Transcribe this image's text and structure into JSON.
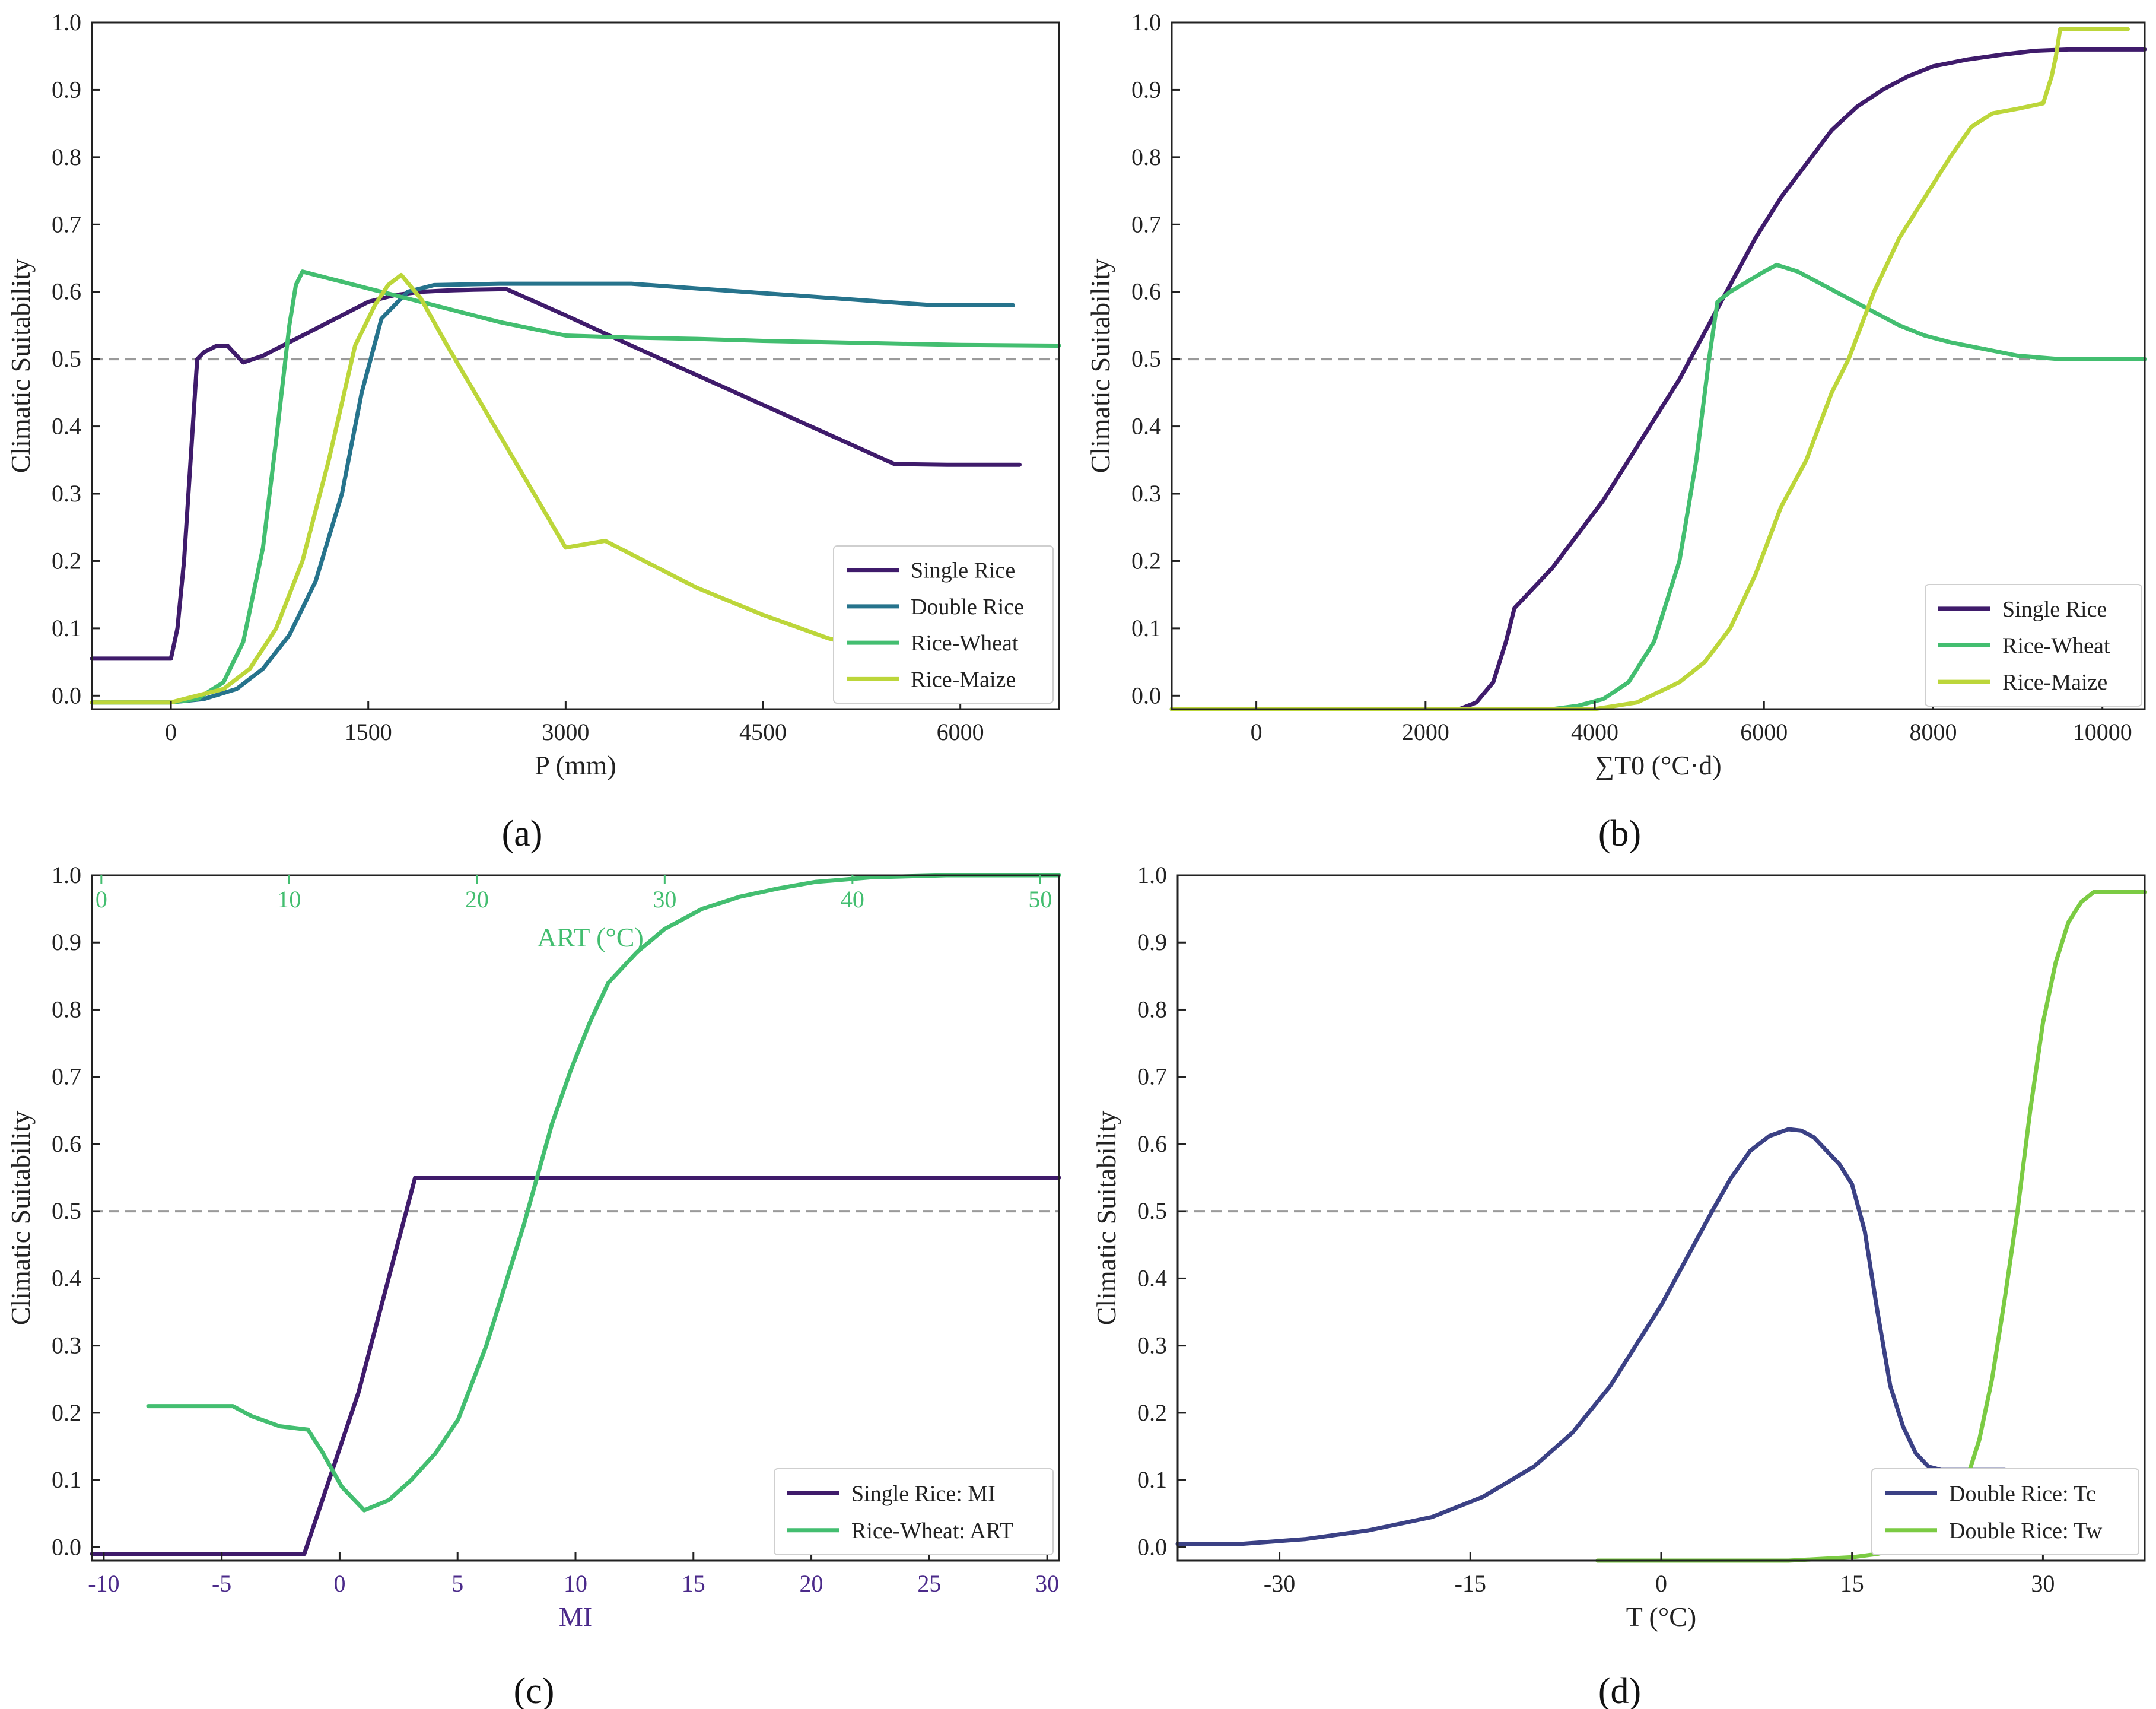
{
  "colors": {
    "single_rice": "#3F1B6B",
    "double_rice": "#26738C",
    "rice_wheat": "#43BE70",
    "rice_maize": "#BCD63A",
    "double_rice_tc": "#3B4185",
    "double_rice_tw": "#7BCB43",
    "reference_line": "#9A9A9A",
    "mi_axis": "#4B2A8A",
    "art_axis": "#43BE70"
  },
  "chart_data": [
    {
      "id": "a",
      "type": "line",
      "panel_label": "(a)",
      "xlabel": "P (mm)",
      "ylabel": "Climatic Suitability",
      "xlim": [
        -600,
        6750
      ],
      "ylim": [
        -0.02,
        1.0
      ],
      "xticks": [
        0,
        1500,
        3000,
        4500,
        6000
      ],
      "xtick_labels": [
        "0",
        "1500",
        "3000",
        "4500",
        "6000"
      ],
      "yticks": [
        0.0,
        0.1,
        0.2,
        0.3,
        0.4,
        0.5,
        0.6,
        0.7,
        0.8,
        0.9,
        1.0
      ],
      "ytick_labels": [
        "0.0",
        "0.1",
        "0.2",
        "0.3",
        "0.4",
        "0.5",
        "0.6",
        "0.7",
        "0.8",
        "0.9",
        "1.0"
      ],
      "reference_line": 0.5,
      "legend_position": "lower-right",
      "series": [
        {
          "name": "Single Rice",
          "color_key": "single_rice",
          "x": [
            -600,
            0,
            50,
            100,
            150,
            200,
            250,
            350,
            430,
            500,
            550,
            700,
            900,
            1100,
            1300,
            1500,
            1700,
            1900,
            2100,
            2300,
            2550,
            3000,
            3500,
            4000,
            4500,
            5000,
            5500,
            5900,
            6450
          ],
          "y": [
            0.055,
            0.055,
            0.1,
            0.2,
            0.35,
            0.5,
            0.51,
            0.52,
            0.52,
            0.505,
            0.495,
            0.505,
            0.525,
            0.545,
            0.565,
            0.585,
            0.595,
            0.6,
            0.602,
            0.603,
            0.604,
            0.565,
            0.52,
            0.476,
            0.432,
            0.388,
            0.344,
            0.343,
            0.343
          ]
        },
        {
          "name": "Double Rice",
          "color_key": "double_rice",
          "x": [
            -600,
            0,
            250,
            500,
            700,
            900,
            1100,
            1300,
            1450,
            1600,
            1800,
            2000,
            2500,
            3000,
            3500,
            4000,
            4500,
            5000,
            5500,
            5800,
            6400
          ],
          "y": [
            -0.01,
            -0.01,
            -0.005,
            0.01,
            0.04,
            0.09,
            0.17,
            0.3,
            0.45,
            0.56,
            0.6,
            0.61,
            0.612,
            0.612,
            0.612,
            0.605,
            0.598,
            0.591,
            0.584,
            0.58,
            0.58
          ]
        },
        {
          "name": "Rice-Wheat",
          "color_key": "rice_wheat",
          "x": [
            -600,
            0,
            200,
            400,
            550,
            700,
            800,
            900,
            950,
            1000,
            1500,
            2000,
            2500,
            3000,
            3500,
            4000,
            4500,
            5000,
            5500,
            6000,
            6750
          ],
          "y": [
            -0.01,
            -0.01,
            -0.005,
            0.02,
            0.08,
            0.22,
            0.38,
            0.55,
            0.61,
            0.63,
            0.605,
            0.58,
            0.555,
            0.535,
            0.532,
            0.53,
            0.527,
            0.525,
            0.523,
            0.521,
            0.52
          ]
        },
        {
          "name": "Rice-Maize",
          "color_key": "rice_maize",
          "x": [
            -600,
            0,
            200,
            400,
            600,
            800,
            1000,
            1200,
            1400,
            1550,
            1650,
            1750,
            1900,
            2100,
            2400,
            2700,
            3000,
            3300,
            3600,
            4000,
            4500,
            5000,
            5500,
            6000
          ],
          "y": [
            -0.01,
            -0.01,
            0.0,
            0.01,
            0.04,
            0.1,
            0.2,
            0.35,
            0.52,
            0.58,
            0.61,
            0.625,
            0.59,
            0.52,
            0.42,
            0.32,
            0.22,
            0.23,
            0.2,
            0.16,
            0.12,
            0.085,
            0.06,
            0.05
          ]
        }
      ]
    },
    {
      "id": "b",
      "type": "line",
      "panel_label": "(b)",
      "xlabel": "∑T0 (°C·d)",
      "ylabel": "Climatic Suitability",
      "xlim": [
        -1000,
        10500
      ],
      "ylim": [
        -0.02,
        1.0
      ],
      "xticks": [
        0,
        2000,
        4000,
        6000,
        8000,
        10000
      ],
      "xtick_labels": [
        "0",
        "2000",
        "4000",
        "6000",
        "8000",
        "10000"
      ],
      "yticks": [
        0.0,
        0.1,
        0.2,
        0.3,
        0.4,
        0.5,
        0.6,
        0.7,
        0.8,
        0.9,
        1.0
      ],
      "ytick_labels": [
        "0.0",
        "0.1",
        "0.2",
        "0.3",
        "0.4",
        "0.5",
        "0.6",
        "0.7",
        "0.8",
        "0.9",
        "1.0"
      ],
      "reference_line": 0.5,
      "legend_position": "lower-right",
      "series": [
        {
          "name": "Single Rice",
          "color_key": "single_rice",
          "x": [
            -1000,
            2400,
            2600,
            2800,
            2950,
            3050,
            3200,
            3500,
            3800,
            4100,
            4400,
            4700,
            5000,
            5300,
            5600,
            5900,
            6200,
            6500,
            6800,
            7100,
            7400,
            7700,
            8000,
            8400,
            8800,
            9200,
            9600,
            10500
          ],
          "y": [
            -0.02,
            -0.02,
            -0.01,
            0.02,
            0.08,
            0.13,
            0.15,
            0.19,
            0.24,
            0.29,
            0.35,
            0.41,
            0.47,
            0.54,
            0.61,
            0.68,
            0.74,
            0.79,
            0.84,
            0.875,
            0.9,
            0.92,
            0.935,
            0.945,
            0.952,
            0.958,
            0.96,
            0.96
          ]
        },
        {
          "name": "Rice-Wheat",
          "color_key": "rice_wheat",
          "x": [
            -1000,
            3500,
            3800,
            4100,
            4400,
            4700,
            5000,
            5200,
            5350,
            5450,
            5600,
            5800,
            6000,
            6150,
            6400,
            6700,
            7000,
            7300,
            7600,
            7900,
            8200,
            8600,
            9000,
            9500,
            10500
          ],
          "y": [
            -0.02,
            -0.02,
            -0.015,
            -0.005,
            0.02,
            0.08,
            0.2,
            0.35,
            0.5,
            0.585,
            0.6,
            0.615,
            0.63,
            0.64,
            0.63,
            0.61,
            0.59,
            0.57,
            0.55,
            0.535,
            0.525,
            0.515,
            0.505,
            0.5,
            0.5
          ]
        },
        {
          "name": "Rice-Maize",
          "color_key": "rice_maize",
          "x": [
            -1000,
            4000,
            4500,
            5000,
            5300,
            5600,
            5900,
            6200,
            6500,
            6800,
            7000,
            7300,
            7600,
            7900,
            8200,
            8450,
            8700,
            9000,
            9300,
            9400,
            9450,
            9500,
            10000,
            10300
          ],
          "y": [
            -0.02,
            -0.02,
            -0.01,
            0.02,
            0.05,
            0.1,
            0.18,
            0.28,
            0.35,
            0.45,
            0.5,
            0.6,
            0.68,
            0.74,
            0.8,
            0.845,
            0.865,
            0.872,
            0.88,
            0.92,
            0.95,
            0.99,
            0.99,
            0.99
          ]
        }
      ]
    },
    {
      "id": "c",
      "type": "line",
      "panel_label": "(c)",
      "xlabel": "MI",
      "x2label": "ART (°C)",
      "ylabel": "Climatic Suitability",
      "xlim": [
        -10.5,
        30.5
      ],
      "x2lim": [
        -0.5,
        51
      ],
      "ylim": [
        -0.02,
        1.0
      ],
      "xticks": [
        -10,
        -5,
        0,
        5,
        10,
        15,
        20,
        25,
        30
      ],
      "xtick_labels": [
        "-10",
        "-5",
        "0",
        "5",
        "10",
        "15",
        "20",
        "25",
        "30"
      ],
      "x2ticks": [
        0,
        10,
        20,
        30,
        40,
        50
      ],
      "x2tick_labels": [
        "0",
        "10",
        "20",
        "30",
        "40",
        "50"
      ],
      "yticks": [
        0.0,
        0.1,
        0.2,
        0.3,
        0.4,
        0.5,
        0.6,
        0.7,
        0.8,
        0.9,
        1.0
      ],
      "ytick_labels": [
        "0.0",
        "0.1",
        "0.2",
        "0.3",
        "0.4",
        "0.5",
        "0.6",
        "0.7",
        "0.8",
        "0.9",
        "1.0"
      ],
      "reference_line": 0.5,
      "legend_position": "lower-right",
      "series": [
        {
          "name": "Single Rice: MI",
          "color_key": "single_rice",
          "axis": "MI",
          "x": [
            -10.5,
            -1.5,
            0.8,
            3.2,
            30.5
          ],
          "y": [
            -0.01,
            -0.01,
            0.23,
            0.55,
            0.55
          ]
        },
        {
          "name": "Rice-Wheat: ART",
          "color_key": "rice_wheat",
          "axis": "ART",
          "x": [
            2.5,
            4.5,
            7,
            8,
            9.5,
            11,
            11.8,
            12.8,
            14,
            15.3,
            16.5,
            17.8,
            19,
            20.5,
            22.5,
            24,
            25,
            26,
            27,
            28.5,
            30,
            32,
            34,
            36,
            38,
            41,
            45,
            51
          ],
          "y": [
            0.21,
            0.21,
            0.21,
            0.195,
            0.18,
            0.175,
            0.14,
            0.09,
            0.055,
            0.07,
            0.1,
            0.14,
            0.19,
            0.3,
            0.48,
            0.63,
            0.71,
            0.78,
            0.84,
            0.885,
            0.92,
            0.95,
            0.968,
            0.98,
            0.99,
            0.997,
            1.0,
            1.0
          ]
        }
      ]
    },
    {
      "id": "d",
      "type": "line",
      "panel_label": "(d)",
      "xlabel": "T (°C)",
      "ylabel": "Climatic Suitability",
      "xlim": [
        -38,
        38
      ],
      "ylim": [
        -0.02,
        1.0
      ],
      "xticks": [
        -30,
        -15,
        0,
        15,
        30
      ],
      "xtick_labels": [
        "-30",
        "-15",
        "0",
        "15",
        "30"
      ],
      "yticks": [
        0.0,
        0.1,
        0.2,
        0.3,
        0.4,
        0.5,
        0.6,
        0.7,
        0.8,
        0.9,
        1.0
      ],
      "ytick_labels": [
        "0.0",
        "0.1",
        "0.2",
        "0.3",
        "0.4",
        "0.5",
        "0.6",
        "0.7",
        "0.8",
        "0.9",
        "1.0"
      ],
      "reference_line": 0.5,
      "legend_position": "lower-right",
      "series": [
        {
          "name": "Double Rice: Tc",
          "color_key": "double_rice_tc",
          "x": [
            -38,
            -33,
            -28,
            -23,
            -18,
            -14,
            -10,
            -7,
            -4,
            -2,
            0,
            2,
            4,
            5.5,
            7,
            8.5,
            10,
            11,
            12,
            13,
            14,
            15,
            16,
            17,
            18,
            19,
            20,
            21,
            22,
            23,
            24,
            25,
            26,
            27
          ],
          "y": [
            0.005,
            0.005,
            0.012,
            0.025,
            0.045,
            0.075,
            0.12,
            0.17,
            0.24,
            0.3,
            0.36,
            0.43,
            0.5,
            0.55,
            0.59,
            0.612,
            0.622,
            0.62,
            0.61,
            0.59,
            0.57,
            0.54,
            0.47,
            0.35,
            0.24,
            0.18,
            0.14,
            0.12,
            0.115,
            0.115,
            0.115,
            0.115,
            0.115,
            0.115
          ]
        },
        {
          "name": "Double Rice: Tw",
          "color_key": "double_rice_tw",
          "x": [
            -5,
            0,
            10,
            15,
            17,
            19,
            20.5,
            22,
            23,
            24,
            25,
            26,
            27,
            28,
            29,
            30,
            31,
            32,
            33,
            34,
            38
          ],
          "y": [
            -0.02,
            -0.02,
            -0.02,
            -0.015,
            -0.01,
            0.0,
            0.01,
            0.03,
            0.06,
            0.1,
            0.16,
            0.25,
            0.37,
            0.5,
            0.65,
            0.78,
            0.87,
            0.93,
            0.96,
            0.975,
            0.975
          ]
        }
      ]
    }
  ]
}
